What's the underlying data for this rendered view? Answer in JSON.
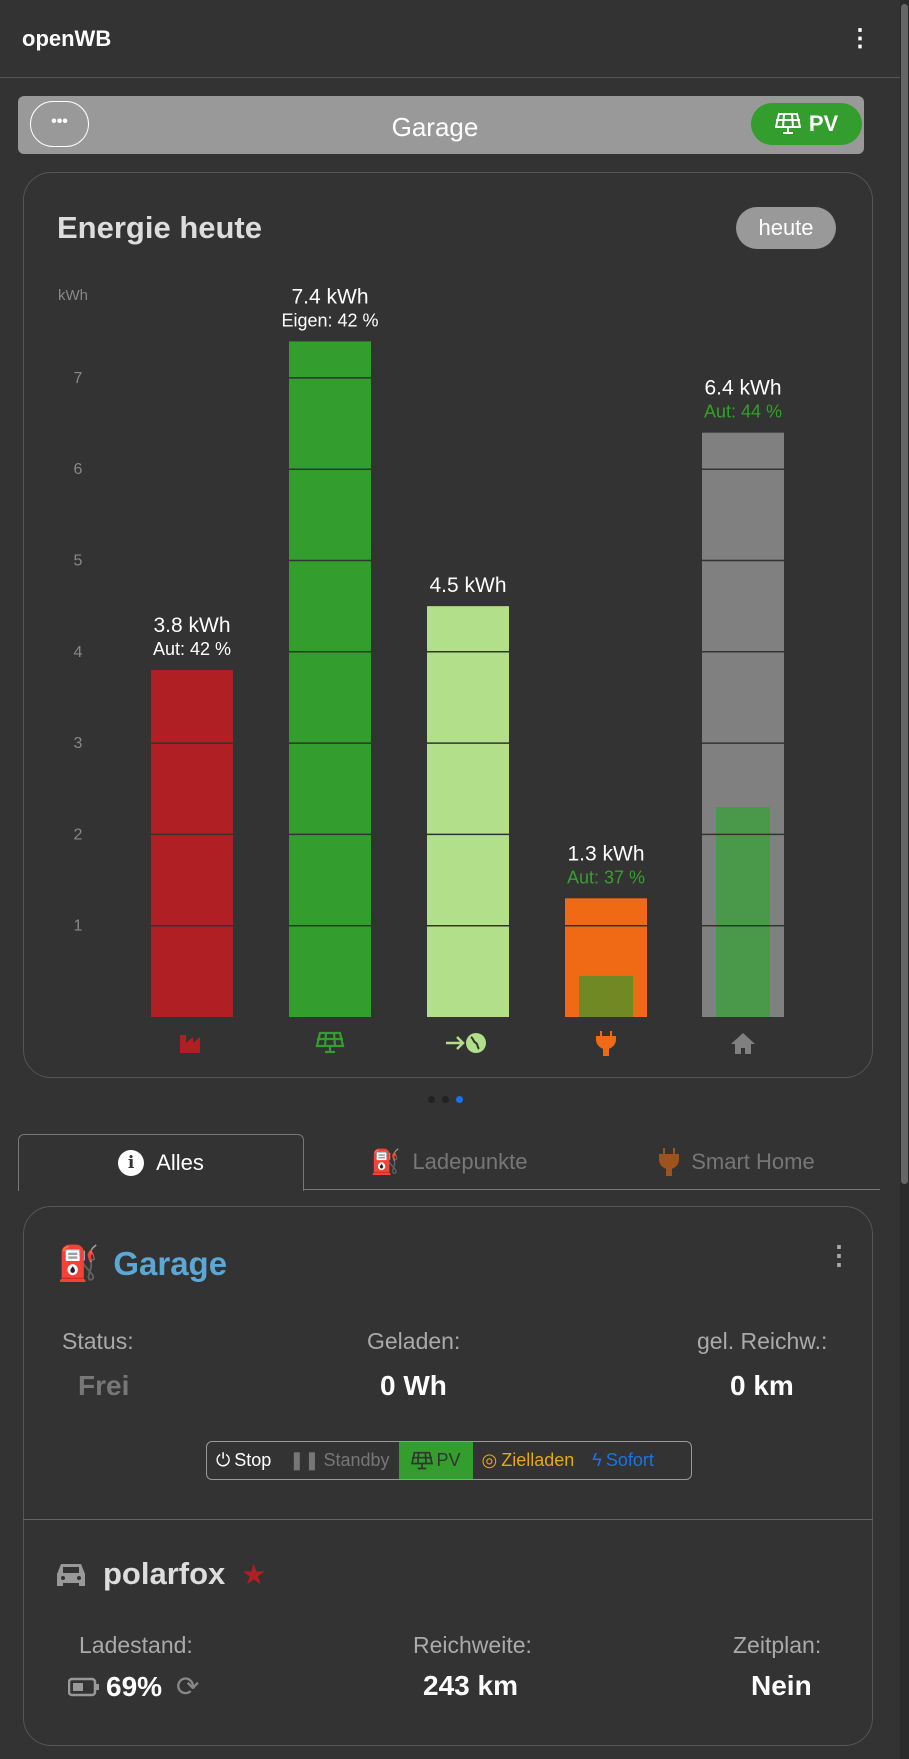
{
  "app": {
    "title": "openWB"
  },
  "chargepoint_bar": {
    "title": "Garage",
    "mode": "PV"
  },
  "energy": {
    "title": "Energie heute",
    "period": "heute",
    "unit": "kWh"
  },
  "chart_data": {
    "type": "bar",
    "title": "Energie heute",
    "ylabel": "kWh",
    "ylim": [
      0,
      7.6
    ],
    "yticks": [
      1,
      2,
      3,
      4,
      5,
      6,
      7
    ],
    "bars": [
      {
        "category": "Netzbezug",
        "icon": "factory-icon",
        "value": 3.8,
        "label": "3.8 kWh",
        "sublabel": "Aut: 42 %",
        "color": "#b01f24",
        "sublabel_color": "#ffffff",
        "inner": null
      },
      {
        "category": "PV",
        "icon": "solar-panel-icon",
        "value": 7.4,
        "label": "7.4 kWh",
        "sublabel": "Eigen: 42 %",
        "color": "#339e2e",
        "sublabel_color": "#ffffff",
        "inner": null
      },
      {
        "category": "Einspeisung",
        "icon": "export-globe-icon",
        "value": 4.5,
        "label": "4.5 kWh",
        "sublabel": "",
        "color": "#b2df8a",
        "sublabel_color": "#ffffff",
        "inner": null
      },
      {
        "category": "Laden",
        "icon": "plug-icon",
        "value": 1.3,
        "label": "1.3 kWh",
        "sublabel": "Aut: 37 %",
        "color": "#f06914",
        "sublabel_color": "#34a02c",
        "inner": 0.45,
        "inner_color": "#718924"
      },
      {
        "category": "Haus",
        "icon": "house-icon",
        "value": 6.4,
        "label": "6.4 kWh",
        "sublabel": "Aut: 44 %",
        "color": "#808080",
        "sublabel_color": "#34a02c",
        "inner": 2.3,
        "inner_color": "#4a984a"
      }
    ]
  },
  "tabs": [
    {
      "label": "Alles",
      "active": true
    },
    {
      "label": "Ladepunkte"
    },
    {
      "label": "Smart Home"
    }
  ],
  "chargepoint": {
    "name": "Garage",
    "status_label": "Status:",
    "status": "Frei",
    "charged_label": "Geladen:",
    "charged": "0 Wh",
    "range_label": "gel. Reichw.:",
    "range": "0 km",
    "modes": [
      {
        "label": "Stop"
      },
      {
        "label": "Standby"
      },
      {
        "label": "PV",
        "active": true
      },
      {
        "label": "Zielladen"
      },
      {
        "label": "Sofort"
      }
    ]
  },
  "vehicle": {
    "name": "polarfox",
    "soc_label": "Ladestand:",
    "soc": "69%",
    "range_label": "Reichweite:",
    "range": "243 km",
    "plan_label": "Zeitplan:",
    "plan": "Nein"
  }
}
